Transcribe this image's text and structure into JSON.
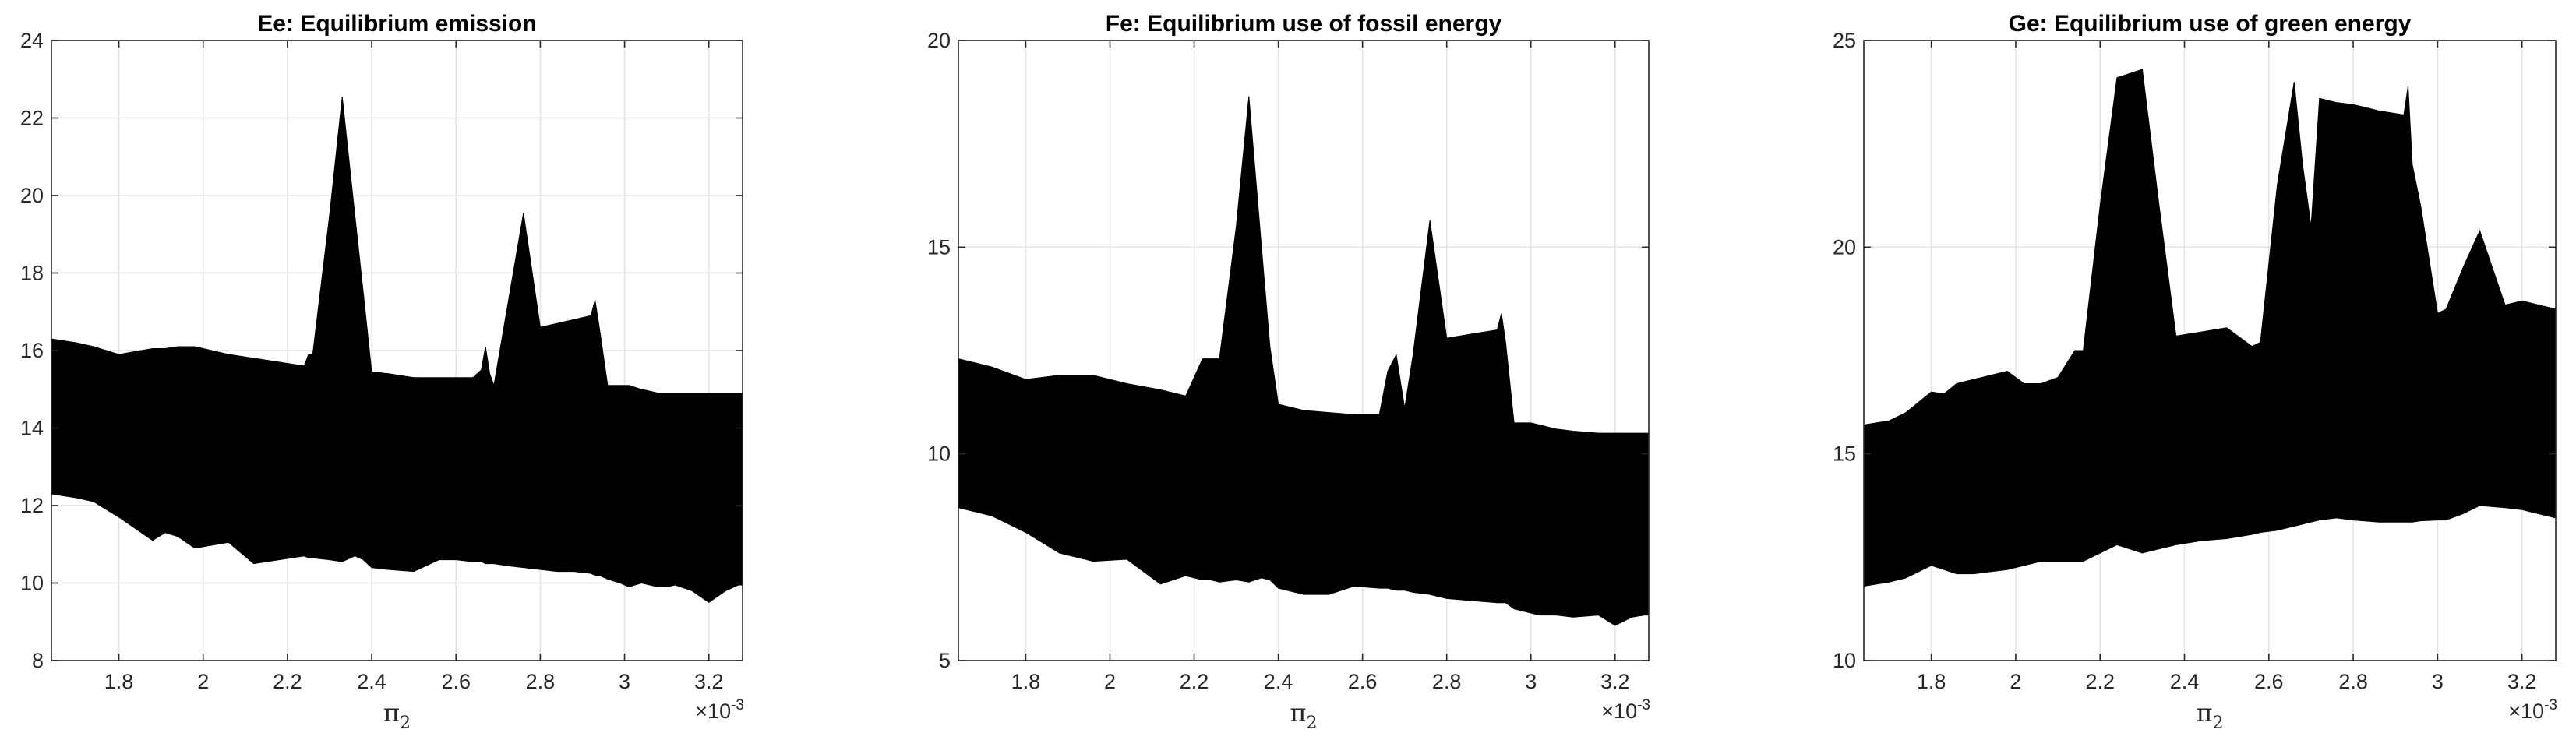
{
  "chart_data": [
    {
      "type": "area",
      "title": "Ee: Equilibrium emission",
      "xlabel": "π",
      "xlabel_sub": "2",
      "x_exponent_base": "×10",
      "x_exponent": "-3",
      "xlim": [
        1.64,
        3.28
      ],
      "ylim": [
        8,
        24
      ],
      "grid": true,
      "xticks": [
        1.8,
        2,
        2.2,
        2.4,
        2.6,
        2.8,
        3,
        3.2
      ],
      "xtick_labels": [
        "1.8",
        "2",
        "2.2",
        "2.4",
        "2.6",
        "2.8",
        "3",
        "3.2"
      ],
      "yticks": [
        8,
        10,
        12,
        14,
        16,
        18,
        20,
        22,
        24
      ],
      "ytick_labels": [
        "8",
        "10",
        "12",
        "14",
        "16",
        "18",
        "20",
        "22",
        "24"
      ],
      "fill_color": "#000000",
      "x": [
        1.64,
        1.7,
        1.74,
        1.8,
        1.88,
        1.91,
        1.94,
        1.98,
        2.06,
        2.12,
        2.18,
        2.24,
        2.25,
        2.26,
        2.3,
        2.33,
        2.36,
        2.38,
        2.4,
        2.44,
        2.5,
        2.56,
        2.6,
        2.64,
        2.66,
        2.67,
        2.68,
        2.69,
        2.72,
        2.76,
        2.8,
        2.84,
        2.88,
        2.92,
        2.93,
        2.94,
        2.96,
        2.99,
        3.01,
        3.04,
        3.08,
        3.1,
        3.12,
        3.16,
        3.2,
        3.24,
        3.27,
        3.28
      ],
      "upper": [
        16.3,
        16.2,
        16.1,
        15.9,
        16.05,
        16.05,
        16.1,
        16.1,
        15.9,
        15.8,
        15.7,
        15.6,
        15.9,
        15.9,
        19.5,
        22.55,
        19.5,
        17.5,
        15.45,
        15.4,
        15.3,
        15.3,
        15.3,
        15.3,
        15.5,
        16.1,
        15.4,
        15.1,
        17.0,
        19.55,
        16.6,
        16.7,
        16.8,
        16.9,
        17.3,
        16.6,
        15.1,
        15.1,
        15.1,
        15.0,
        14.9,
        14.9,
        14.9,
        14.9,
        14.9,
        14.9,
        14.9,
        14.9
      ],
      "lower": [
        12.3,
        12.2,
        12.1,
        11.7,
        11.1,
        11.3,
        11.2,
        10.9,
        11.05,
        10.5,
        10.6,
        10.7,
        10.65,
        10.65,
        10.6,
        10.55,
        10.7,
        10.6,
        10.4,
        10.35,
        10.3,
        10.6,
        10.6,
        10.55,
        10.55,
        10.5,
        10.5,
        10.5,
        10.45,
        10.4,
        10.35,
        10.3,
        10.3,
        10.25,
        10.2,
        10.2,
        10.1,
        10.0,
        9.9,
        10.0,
        9.9,
        9.9,
        9.95,
        9.8,
        9.5,
        9.8,
        9.95,
        9.95
      ]
    },
    {
      "type": "area",
      "title": "Fe: Equilibrium use of fossil energy",
      "xlabel": "π",
      "xlabel_sub": "2",
      "x_exponent_base": "×10",
      "x_exponent": "-3",
      "xlim": [
        1.64,
        3.28
      ],
      "ylim": [
        5,
        20
      ],
      "grid": true,
      "xticks": [
        1.8,
        2,
        2.2,
        2.4,
        2.6,
        2.8,
        3,
        3.2
      ],
      "xtick_labels": [
        "1.8",
        "2",
        "2.2",
        "2.4",
        "2.6",
        "2.8",
        "3",
        "3.2"
      ],
      "yticks": [
        5,
        10,
        15,
        20
      ],
      "ytick_labels": [
        "5",
        "10",
        "15",
        "20"
      ],
      "fill_color": "#000000",
      "x": [
        1.64,
        1.72,
        1.8,
        1.88,
        1.96,
        2.04,
        2.12,
        2.18,
        2.22,
        2.24,
        2.26,
        2.3,
        2.33,
        2.36,
        2.38,
        2.4,
        2.46,
        2.52,
        2.58,
        2.64,
        2.66,
        2.68,
        2.7,
        2.72,
        2.76,
        2.8,
        2.86,
        2.92,
        2.93,
        2.94,
        2.96,
        3.0,
        3.02,
        3.06,
        3.1,
        3.16,
        3.2,
        3.24,
        3.27,
        3.28
      ],
      "upper": [
        12.3,
        12.1,
        11.8,
        11.9,
        11.9,
        11.7,
        11.55,
        11.4,
        12.3,
        12.3,
        12.3,
        15.5,
        18.65,
        15.0,
        12.6,
        11.2,
        11.05,
        11.0,
        10.95,
        10.95,
        12.0,
        12.4,
        11.1,
        12.4,
        15.65,
        12.8,
        12.9,
        13.0,
        13.4,
        12.7,
        10.75,
        10.75,
        10.7,
        10.6,
        10.55,
        10.5,
        10.5,
        10.5,
        10.5,
        10.5
      ],
      "lower": [
        8.7,
        8.5,
        8.1,
        7.6,
        7.4,
        7.45,
        6.85,
        7.05,
        6.95,
        6.95,
        6.9,
        6.95,
        6.9,
        7.0,
        6.95,
        6.75,
        6.6,
        6.6,
        6.8,
        6.75,
        6.75,
        6.7,
        6.7,
        6.65,
        6.6,
        6.5,
        6.45,
        6.4,
        6.4,
        6.4,
        6.25,
        6.15,
        6.1,
        6.1,
        6.05,
        6.1,
        5.85,
        6.05,
        6.1,
        6.1
      ]
    },
    {
      "type": "area",
      "title": "Ge: Equilibrium use of green energy",
      "xlabel": "π",
      "xlabel_sub": "2",
      "x_exponent_base": "×10",
      "x_exponent": "-3",
      "xlim": [
        1.64,
        3.28
      ],
      "ylim": [
        10,
        25
      ],
      "grid": true,
      "xticks": [
        1.8,
        2,
        2.2,
        2.4,
        2.6,
        2.8,
        3,
        3.2
      ],
      "xtick_labels": [
        "1.8",
        "2",
        "2.2",
        "2.4",
        "2.6",
        "2.8",
        "3",
        "3.2"
      ],
      "yticks": [
        10,
        15,
        20,
        25
      ],
      "ytick_labels": [
        "10",
        "15",
        "20",
        "25"
      ],
      "fill_color": "#000000",
      "x": [
        1.64,
        1.7,
        1.74,
        1.8,
        1.83,
        1.86,
        1.9,
        1.94,
        1.98,
        2.02,
        2.06,
        2.1,
        2.14,
        2.16,
        2.2,
        2.24,
        2.3,
        2.34,
        2.38,
        2.44,
        2.5,
        2.56,
        2.58,
        2.62,
        2.66,
        2.68,
        2.7,
        2.72,
        2.76,
        2.8,
        2.86,
        2.92,
        2.93,
        2.94,
        2.96,
        3.0,
        3.02,
        3.06,
        3.1,
        3.16,
        3.2,
        3.24,
        3.28
      ],
      "upper": [
        15.7,
        15.8,
        16.0,
        16.5,
        16.45,
        16.7,
        16.8,
        16.9,
        17.0,
        16.7,
        16.7,
        16.85,
        17.5,
        17.5,
        21.0,
        24.1,
        24.3,
        21.0,
        17.85,
        17.95,
        18.05,
        17.6,
        17.7,
        21.5,
        24.0,
        22.0,
        20.5,
        23.6,
        23.5,
        23.45,
        23.3,
        23.2,
        23.9,
        22.0,
        21.0,
        18.4,
        18.5,
        19.5,
        20.4,
        18.6,
        18.7,
        18.6,
        18.5
      ],
      "lower": [
        11.8,
        11.9,
        12.0,
        12.3,
        12.2,
        12.1,
        12.1,
        12.15,
        12.2,
        12.3,
        12.4,
        12.4,
        12.4,
        12.4,
        12.6,
        12.8,
        12.6,
        12.7,
        12.8,
        12.9,
        12.95,
        13.05,
        13.1,
        13.15,
        13.25,
        13.3,
        13.35,
        13.4,
        13.45,
        13.4,
        13.35,
        13.35,
        13.35,
        13.35,
        13.38,
        13.4,
        13.4,
        13.55,
        13.75,
        13.7,
        13.65,
        13.55,
        13.45
      ]
    }
  ]
}
